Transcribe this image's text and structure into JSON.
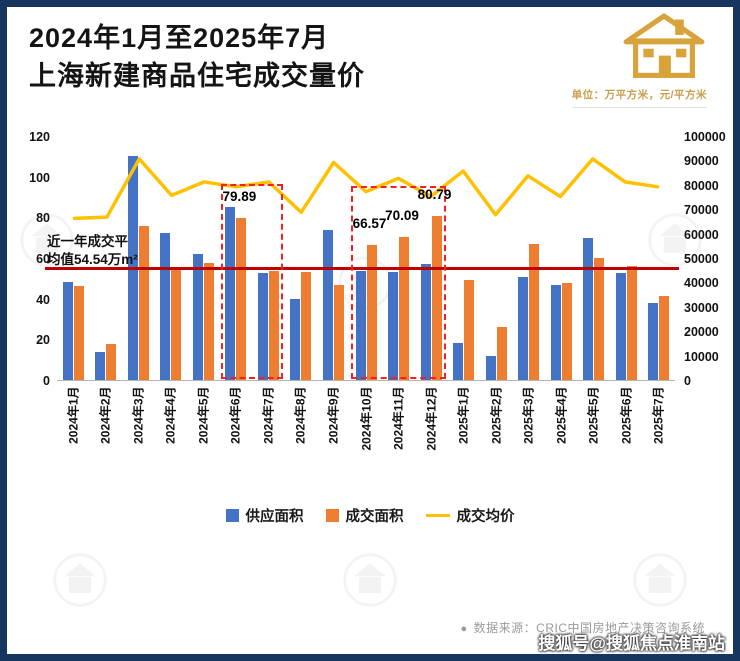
{
  "header": {
    "title_line1": "2024年1月至2025年7月",
    "title_line2": "上海新建商品住宅成交量价",
    "unit_note": "单位：万平方米，元/平方米"
  },
  "chart_data": {
    "type": "bar+line",
    "categories": [
      "2024年1月",
      "2024年2月",
      "2024年3月",
      "2024年4月",
      "2024年5月",
      "2024年6月",
      "2024年7月",
      "2024年8月",
      "2024年9月",
      "2024年10月",
      "2024年11月",
      "2024年12月",
      "2025年1月",
      "2025年2月",
      "2025年3月",
      "2025年4月",
      "2025年5月",
      "2025年6月",
      "2025年7月"
    ],
    "series": [
      {
        "name": "供应面积",
        "type": "bar",
        "axis": "left",
        "color": "#4472c4",
        "values": [
          48,
          14,
          110,
          72.5,
          62,
          85,
          52.5,
          40,
          74,
          53.5,
          53,
          57,
          18,
          12,
          50.5,
          46.5,
          70,
          52.5,
          38
        ]
      },
      {
        "name": "成交面积",
        "type": "bar",
        "axis": "left",
        "color": "#ed7d31",
        "values": [
          46,
          17.5,
          75.5,
          55.5,
          57.5,
          79.89,
          53.5,
          53,
          46.5,
          66.57,
          70.09,
          80.79,
          49,
          26,
          67,
          47.5,
          60,
          56,
          41.5
        ]
      },
      {
        "name": "成交均价",
        "type": "line",
        "axis": "right",
        "color": "#ffc000",
        "values": [
          66500,
          67000,
          91000,
          76000,
          81500,
          79500,
          81500,
          69000,
          89500,
          77500,
          83000,
          75500,
          86000,
          68000,
          84000,
          75500,
          91000,
          81500,
          79500
        ]
      }
    ],
    "left_axis": {
      "min": 0,
      "max": 120,
      "step": 20
    },
    "right_axis": {
      "min": 0,
      "max": 100000,
      "step": 10000
    },
    "reference_line": {
      "value": 54.54,
      "color": "#c00000"
    },
    "annotation": {
      "line1": "近一年成交平",
      "line2": "均值54.54万m²"
    },
    "data_labels": [
      {
        "category_index": 5,
        "series": "成交面积",
        "text": "79.89"
      },
      {
        "category_index": 9,
        "series": "成交面积",
        "text": "66.57"
      },
      {
        "category_index": 10,
        "series": "成交面积",
        "text": "70.09"
      },
      {
        "category_index": 11,
        "series": "成交面积",
        "text": "80.79"
      }
    ],
    "highlight_boxes": [
      {
        "from_index": 5,
        "to_index": 6,
        "top_value": 97
      },
      {
        "from_index": 9,
        "to_index": 11,
        "top_value": 96
      }
    ]
  },
  "legend": {
    "items": [
      {
        "label": "供应面积",
        "color": "#4472c4",
        "swatch": "square"
      },
      {
        "label": "成交面积",
        "color": "#ed7d31",
        "swatch": "square"
      },
      {
        "label": "成交均价",
        "color": "#ffc000",
        "swatch": "line"
      }
    ]
  },
  "footer": {
    "bullet": "●",
    "source": "数据来源：CRIC中国房地产决策咨询系统",
    "watermark": "搜狐号@搜狐焦点淮南站"
  }
}
